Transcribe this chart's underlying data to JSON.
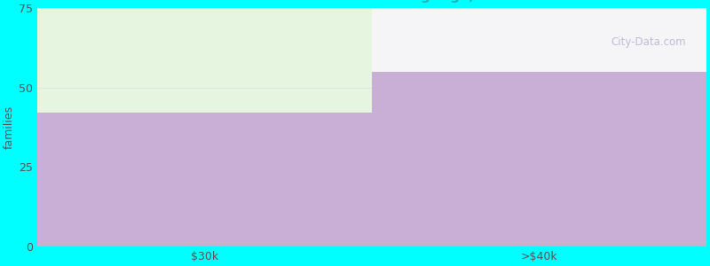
{
  "categories": [
    "$30k",
    ">$40k"
  ],
  "values": [
    42,
    55
  ],
  "bar_color": "#c9aed6",
  "background_color": "#00ffff",
  "plot_bg_color": "#f5faf2",
  "above_bar1_color": "#e5f5e0",
  "above_bar2_color": "#f5f5f8",
  "ylabel": "families",
  "ylim": [
    0,
    75
  ],
  "yticks": [
    0,
    25,
    50,
    75
  ],
  "title_fontsize": 14,
  "subtitle_fontsize": 11,
  "title_color": "#222222",
  "subtitle_color": "#2aacbb",
  "axis_label_color": "#555555",
  "tick_color": "#555555",
  "watermark_text": "ⓘ City-Data.com"
}
